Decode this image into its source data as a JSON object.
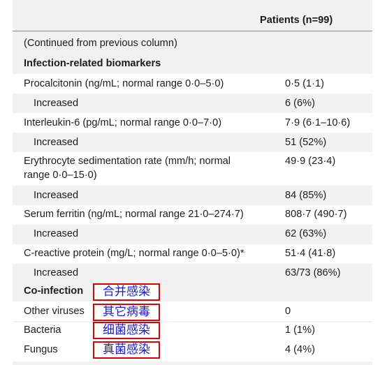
{
  "table": {
    "column_header": "Patients (n=99)",
    "continued_note": "(Continued from previous column)",
    "section_biomarkers": "Infection-related biomarkers",
    "section_coinfection": "Co-infection",
    "rows": [
      {
        "label": "Procalcitonin (ng/mL; normal range 0·0–5·0)",
        "value": "0·5 (1·1)"
      },
      {
        "label": "Increased",
        "value": "6 (6%)"
      },
      {
        "label": "Interleukin-6 (pg/mL; normal range 0·0–7·0)",
        "value": "7·9 (6·1–10·6)"
      },
      {
        "label": "Increased",
        "value": "51 (52%)"
      },
      {
        "label_line1": "Erythrocyte sedimentation rate (mm/h; normal",
        "label_line2": "range 0·0–15·0)",
        "value": "49·9 (23·4)"
      },
      {
        "label": "Increased",
        "value": "84 (85%)"
      },
      {
        "label": "Serum ferritin (ng/mL; normal range 21·0–274·7)",
        "value": "808·7 (490·7)"
      },
      {
        "label": "Increased",
        "value": "62 (63%)"
      },
      {
        "label": "C-reactive protein (mg/L; normal range 0·0–5·0)*",
        "value": "51·4 (41·8)"
      },
      {
        "label": "Increased",
        "value": "63/73 (86%)"
      }
    ],
    "coinfection_rows": [
      {
        "label": "Other viruses",
        "value": "0"
      },
      {
        "label": "Bacteria",
        "value": "1 (1%)"
      },
      {
        "label": "Fungus",
        "value": "4 (4%)"
      }
    ]
  },
  "annotations": {
    "coinfection": "合并感染",
    "other_viruses": "其它病毒",
    "bacteria": "细菌感染",
    "fungus": "真菌感染"
  },
  "colors": {
    "panel_background": "#f1f1f2",
    "annotation_border": "#e00000",
    "annotation_text": "#1a1adc"
  }
}
